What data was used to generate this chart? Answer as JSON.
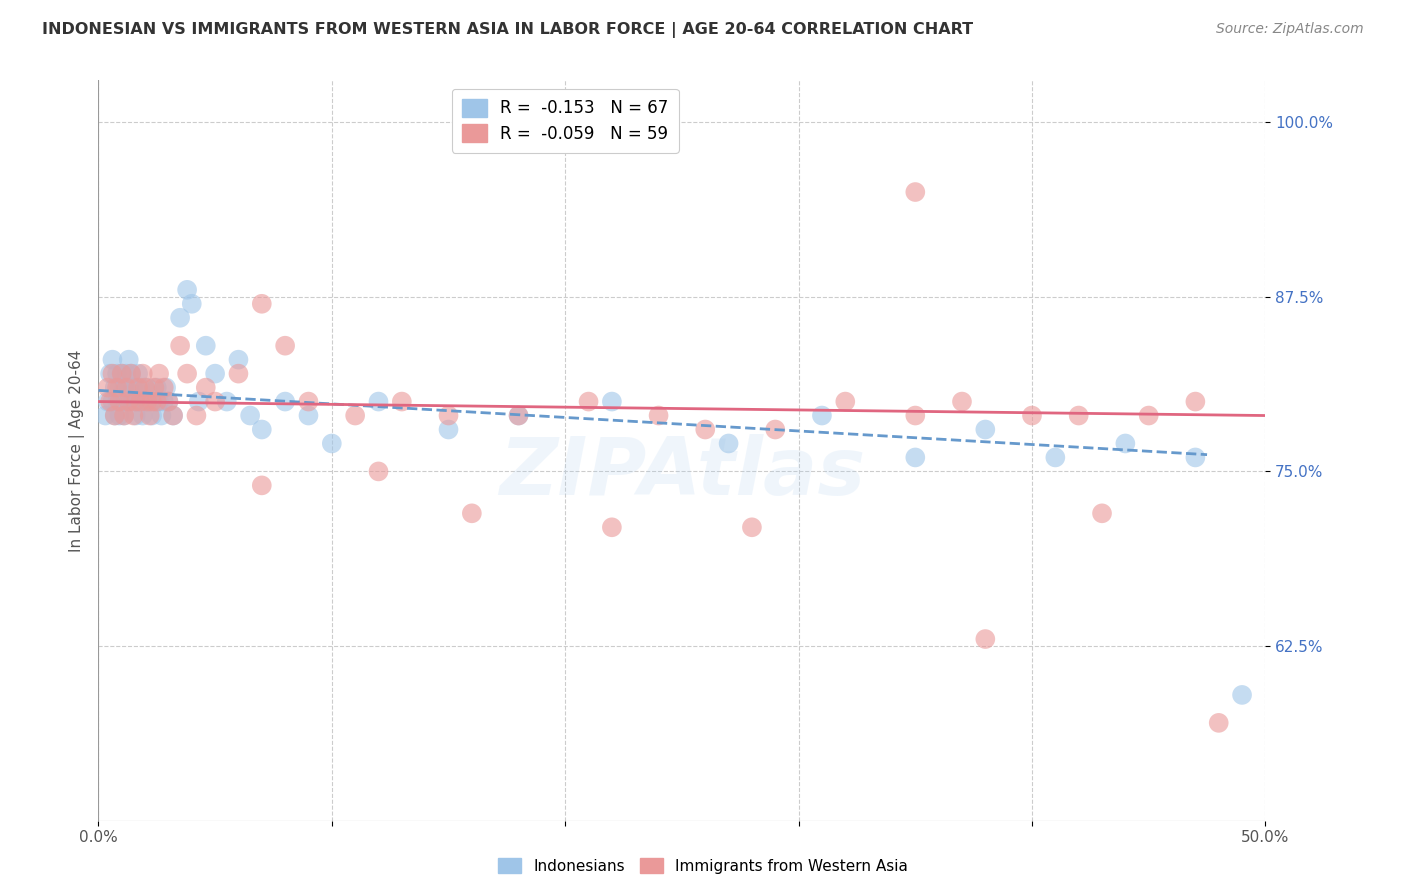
{
  "title": "INDONESIAN VS IMMIGRANTS FROM WESTERN ASIA IN LABOR FORCE | AGE 20-64 CORRELATION CHART",
  "source": "Source: ZipAtlas.com",
  "ylabel": "In Labor Force | Age 20-64",
  "xlim": [
    0.0,
    0.5
  ],
  "ylim": [
    0.5,
    1.03
  ],
  "xticks": [
    0.0,
    0.1,
    0.2,
    0.3,
    0.4,
    0.5
  ],
  "xticklabels": [
    "0.0%",
    "",
    "",
    "",
    "",
    "50.0%"
  ],
  "yticks": [
    0.625,
    0.75,
    0.875,
    1.0
  ],
  "yticklabels": [
    "62.5%",
    "75.0%",
    "87.5%",
    "100.0%"
  ],
  "legend_r_blue": "-0.153",
  "legend_n_blue": "67",
  "legend_r_pink": "-0.059",
  "legend_n_pink": "59",
  "color_blue": "#9fc5e8",
  "color_pink": "#ea9999",
  "color_blue_line": "#6699cc",
  "color_pink_line": "#e06680",
  "background_color": "#ffffff",
  "grid_color": "#cccccc",
  "indonesians_x": [
    0.003,
    0.004,
    0.005,
    0.006,
    0.006,
    0.007,
    0.007,
    0.008,
    0.008,
    0.009,
    0.009,
    0.01,
    0.01,
    0.011,
    0.011,
    0.012,
    0.012,
    0.013,
    0.013,
    0.014,
    0.014,
    0.015,
    0.015,
    0.016,
    0.016,
    0.017,
    0.017,
    0.018,
    0.018,
    0.019,
    0.02,
    0.021,
    0.022,
    0.023,
    0.024,
    0.025,
    0.026,
    0.027,
    0.028,
    0.029,
    0.03,
    0.032,
    0.035,
    0.038,
    0.04,
    0.043,
    0.046,
    0.05,
    0.055,
    0.06,
    0.065,
    0.07,
    0.08,
    0.09,
    0.1,
    0.12,
    0.15,
    0.18,
    0.22,
    0.27,
    0.31,
    0.35,
    0.38,
    0.41,
    0.44,
    0.47,
    0.49
  ],
  "indonesians_y": [
    0.79,
    0.8,
    0.82,
    0.8,
    0.83,
    0.79,
    0.81,
    0.8,
    0.82,
    0.79,
    0.81,
    0.8,
    0.82,
    0.79,
    0.81,
    0.8,
    0.82,
    0.81,
    0.83,
    0.8,
    0.82,
    0.81,
    0.8,
    0.79,
    0.81,
    0.8,
    0.82,
    0.81,
    0.8,
    0.79,
    0.8,
    0.81,
    0.8,
    0.79,
    0.8,
    0.81,
    0.8,
    0.79,
    0.8,
    0.81,
    0.8,
    0.79,
    0.86,
    0.88,
    0.87,
    0.8,
    0.84,
    0.82,
    0.8,
    0.83,
    0.79,
    0.78,
    0.8,
    0.79,
    0.77,
    0.8,
    0.78,
    0.79,
    0.8,
    0.77,
    0.79,
    0.76,
    0.78,
    0.76,
    0.77,
    0.76,
    0.59
  ],
  "western_asia_x": [
    0.004,
    0.005,
    0.006,
    0.007,
    0.008,
    0.009,
    0.01,
    0.011,
    0.012,
    0.013,
    0.014,
    0.015,
    0.016,
    0.017,
    0.018,
    0.019,
    0.02,
    0.021,
    0.022,
    0.023,
    0.024,
    0.025,
    0.026,
    0.028,
    0.03,
    0.032,
    0.035,
    0.038,
    0.042,
    0.046,
    0.05,
    0.06,
    0.07,
    0.08,
    0.09,
    0.11,
    0.13,
    0.15,
    0.18,
    0.21,
    0.24,
    0.26,
    0.29,
    0.32,
    0.35,
    0.37,
    0.4,
    0.42,
    0.45,
    0.47,
    0.22,
    0.28,
    0.07,
    0.12,
    0.16,
    0.38,
    0.43,
    0.35,
    0.48
  ],
  "western_asia_y": [
    0.81,
    0.8,
    0.82,
    0.79,
    0.81,
    0.8,
    0.82,
    0.79,
    0.81,
    0.8,
    0.82,
    0.79,
    0.8,
    0.81,
    0.8,
    0.82,
    0.81,
    0.8,
    0.79,
    0.8,
    0.81,
    0.8,
    0.82,
    0.81,
    0.8,
    0.79,
    0.84,
    0.82,
    0.79,
    0.81,
    0.8,
    0.82,
    0.87,
    0.84,
    0.8,
    0.79,
    0.8,
    0.79,
    0.79,
    0.8,
    0.79,
    0.78,
    0.78,
    0.8,
    0.79,
    0.8,
    0.79,
    0.79,
    0.79,
    0.8,
    0.71,
    0.71,
    0.74,
    0.75,
    0.72,
    0.63,
    0.72,
    0.95,
    0.57
  ],
  "blue_line_x0": 0.0,
  "blue_line_x1": 0.475,
  "blue_line_y0": 0.808,
  "blue_line_y1": 0.762,
  "pink_line_x0": 0.0,
  "pink_line_x1": 0.5,
  "pink_line_y0": 0.8,
  "pink_line_y1": 0.79
}
